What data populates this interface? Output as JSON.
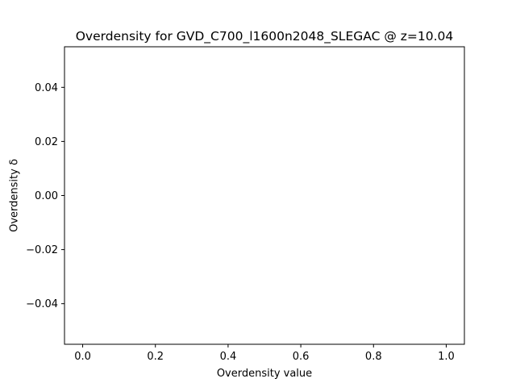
{
  "chart_data": {
    "type": "scatter",
    "title": "Overdensity for GVD_C700_l1600n2048_SLEGAC @ z=10.04",
    "xlabel": "Overdensity value",
    "ylabel": "Overdensity δ",
    "xlim": [
      -0.05,
      1.05
    ],
    "ylim": [
      -0.055,
      0.055
    ],
    "xticks": [
      0.0,
      0.2,
      0.4,
      0.6,
      0.8,
      1.0
    ],
    "xtick_labels": [
      "0.0",
      "0.2",
      "0.4",
      "0.6",
      "0.8",
      "1.0"
    ],
    "yticks": [
      -0.04,
      -0.02,
      0.0,
      0.02,
      0.04
    ],
    "ytick_labels": [
      "−0.04",
      "−0.02",
      "0.00",
      "0.02",
      "0.04"
    ],
    "series": [],
    "grid": false,
    "legend": "none"
  }
}
